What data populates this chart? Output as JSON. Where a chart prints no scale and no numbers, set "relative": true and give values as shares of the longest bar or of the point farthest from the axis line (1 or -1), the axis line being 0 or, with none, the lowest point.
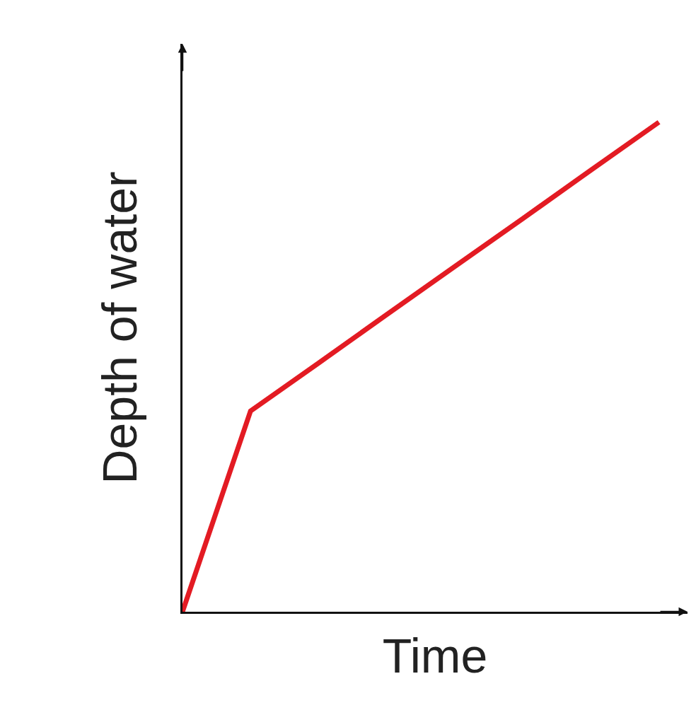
{
  "chart_data": {
    "type": "line",
    "xlabel": "Time",
    "ylabel": "Depth of water",
    "relative": true,
    "categories": [
      null,
      null,
      null,
      null,
      null,
      null,
      null,
      null
    ],
    "series": [
      {
        "color": "#e31b23",
        "values": [
          0,
          0.41,
          0.508,
          0.607,
          0.705,
          0.803,
          0.902,
          1
        ]
      }
    ],
    "marker": "none",
    "line_style": "solid",
    "grid": false
  }
}
